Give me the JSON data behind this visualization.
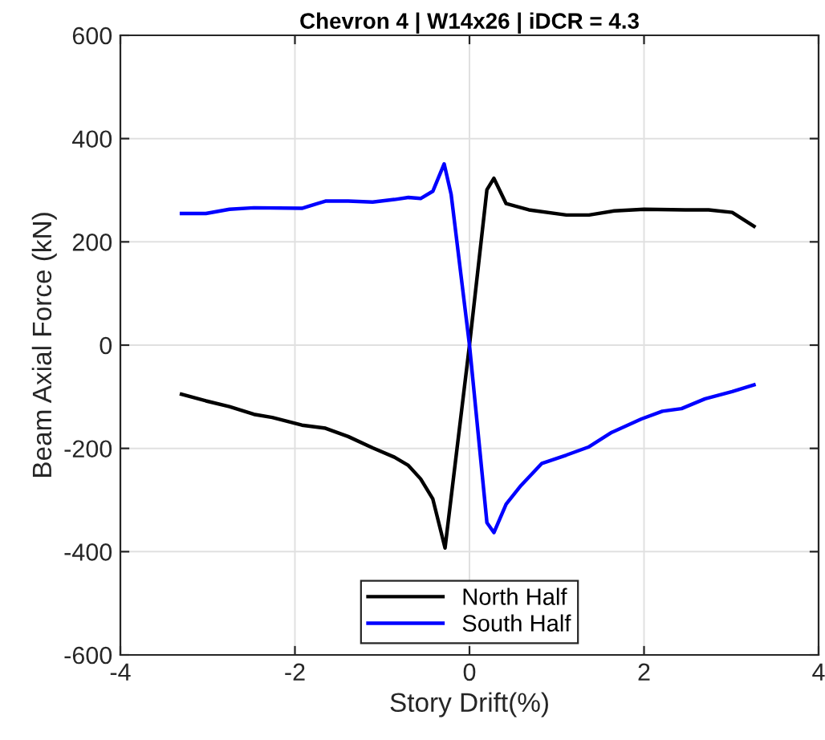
{
  "chart_data": {
    "type": "line",
    "title": "Chevron 4 | W14x26 | iDCR = 4.3",
    "xlabel": "Story Drift(%)",
    "ylabel": "Beam Axial Force (kN)",
    "xlim": [
      -4,
      4
    ],
    "xticks": [
      -4,
      -2,
      0,
      2,
      4
    ],
    "ylim": [
      -600,
      600
    ],
    "yticks": [
      -600,
      -400,
      -200,
      0,
      200,
      400,
      600
    ],
    "grid": true,
    "legend": "bottom",
    "marker": "none",
    "line_style": "solid",
    "series": [
      {
        "name": "North Half",
        "color": "#000000",
        "x": [
          -3.3,
          -3.02,
          -2.75,
          -2.47,
          -2.26,
          -1.92,
          -1.65,
          -1.39,
          -1.11,
          -0.86,
          -0.7,
          -0.56,
          -0.42,
          -0.28,
          0.0,
          0.2,
          0.28,
          0.42,
          0.68,
          1.11,
          1.37,
          1.66,
          2.0,
          2.47,
          2.74,
          3.01,
          3.26
        ],
        "values": [
          -95,
          -108,
          -119,
          -134,
          -140,
          -155,
          -161,
          -177,
          -199,
          -217,
          -233,
          -259,
          -298,
          -393,
          0,
          301,
          323,
          274,
          262,
          252,
          252,
          260,
          263,
          262,
          262,
          257,
          230
        ]
      },
      {
        "name": "South Half",
        "color": "#0000ff",
        "x": [
          -3.3,
          -3.02,
          -2.75,
          -2.47,
          -1.92,
          -1.65,
          -1.39,
          -1.11,
          -0.86,
          -0.7,
          -0.56,
          -0.42,
          -0.29,
          -0.21,
          0.0,
          0.2,
          0.28,
          0.42,
          0.59,
          0.83,
          1.11,
          1.37,
          1.63,
          1.97,
          2.21,
          2.43,
          2.7,
          3.01,
          3.26
        ],
        "values": [
          255,
          255,
          263,
          266,
          265,
          279,
          279,
          277,
          282,
          286,
          284,
          298,
          351,
          292,
          0,
          -344,
          -363,
          -308,
          -272,
          -229,
          -213,
          -197,
          -169,
          -143,
          -128,
          -123,
          -104,
          -90,
          -77
        ]
      }
    ]
  }
}
